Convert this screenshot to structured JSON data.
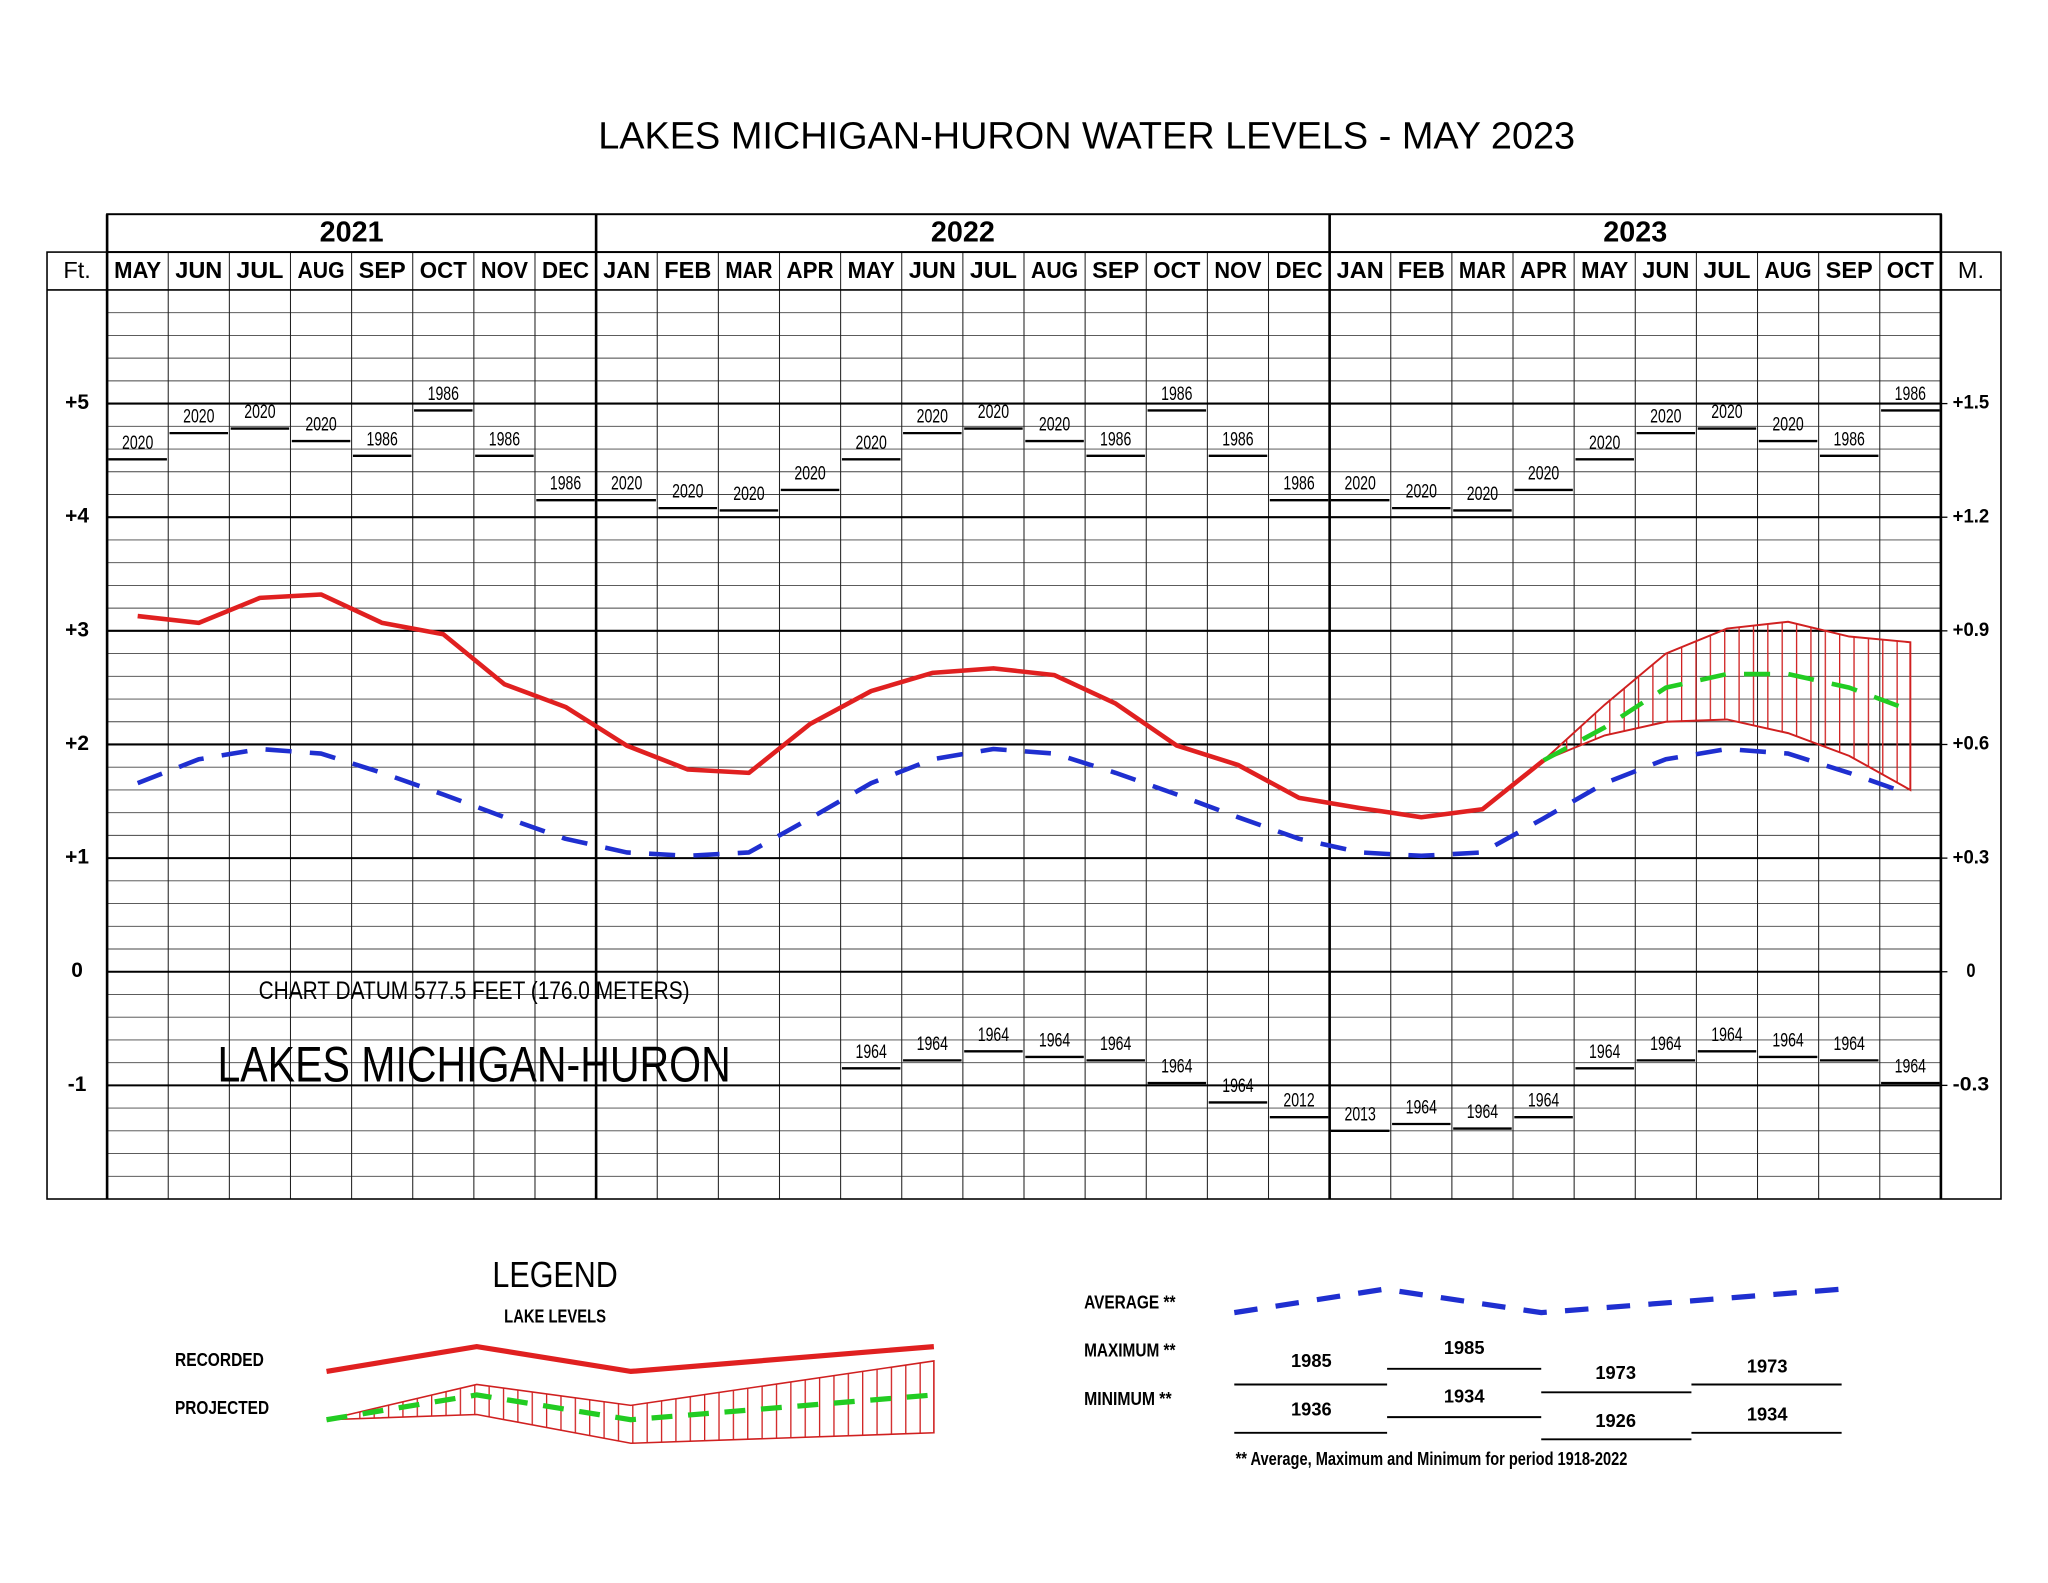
{
  "chart_data": {
    "type": "line",
    "title": "LAKES MICHIGAN-HURON WATER LEVELS - MAY 2023",
    "y_label": "Ft.",
    "y2_label": "M.",
    "datum_note": "CHART DATUM  577.5 FEET (176.0 METERS)",
    "lake_label": "LAKES MICHIGAN-HURON",
    "years": [
      {
        "year": "2021",
        "months": [
          "MAY",
          "JUN",
          "JUL",
          "AUG",
          "SEP",
          "OCT",
          "NOV",
          "DEC"
        ]
      },
      {
        "year": "2022",
        "months": [
          "JAN",
          "FEB",
          "MAR",
          "APR",
          "MAY",
          "JUN",
          "JUL",
          "AUG",
          "SEP",
          "OCT",
          "NOV",
          "DEC"
        ]
      },
      {
        "year": "2023",
        "months": [
          "JAN",
          "FEB",
          "MAR",
          "APR",
          "MAY",
          "JUN",
          "JUL",
          "AUG",
          "SEP",
          "OCT"
        ]
      }
    ],
    "ylim": [
      -2,
      6
    ],
    "yticks": [
      {
        "value": 5,
        "label": "+5"
      },
      {
        "value": 4,
        "label": "+4"
      },
      {
        "value": 3,
        "label": "+3"
      },
      {
        "value": 2,
        "label": "+2"
      },
      {
        "value": 1,
        "label": "+1"
      },
      0,
      -1
    ],
    "y2lim": [
      -0.6,
      1.8
    ],
    "y2ticks": [
      {
        "value": 1.5,
        "label": "+1.5"
      },
      {
        "value": 1.2,
        "label": "+1.2"
      },
      {
        "value": 0.9,
        "label": "+0.9"
      },
      {
        "value": 0.6,
        "label": "+0.6"
      },
      {
        "value": 0.3,
        "label": "+0.3"
      },
      0,
      -0.3
    ],
    "y_minor_step": 0.2,
    "grid": true,
    "series": [
      {
        "name": "RECORDED",
        "color": "#e02020",
        "dash": false,
        "values": [
          3.13,
          3.07,
          3.29,
          3.32,
          3.07,
          2.97,
          2.53,
          2.33,
          1.99,
          1.78,
          1.75,
          2.18,
          2.47,
          2.63,
          2.67,
          2.61,
          2.36,
          1.99,
          1.82,
          1.53,
          1.44,
          1.36,
          1.43,
          1.86,
          null,
          null,
          null,
          null,
          null,
          null
        ]
      },
      {
        "name": "AVERAGE **",
        "color": "#1f2fd0",
        "dash": true,
        "values": [
          1.66,
          1.87,
          1.96,
          1.92,
          1.75,
          1.56,
          1.36,
          1.17,
          1.05,
          1.02,
          1.05,
          1.35,
          1.66,
          1.87,
          1.96,
          1.92,
          1.75,
          1.56,
          1.36,
          1.17,
          1.05,
          1.02,
          1.05,
          1.35,
          1.66,
          1.87,
          1.96,
          1.92,
          1.75,
          1.56
        ]
      },
      {
        "name": "PROJECTED",
        "color": "#22cc22",
        "dash": true,
        "values": [
          null,
          null,
          null,
          null,
          null,
          null,
          null,
          null,
          null,
          null,
          null,
          null,
          null,
          null,
          null,
          null,
          null,
          null,
          null,
          null,
          null,
          null,
          null,
          1.86,
          2.15,
          2.5,
          2.62,
          2.62,
          2.5,
          2.3
        ]
      }
    ],
    "band": {
      "color": "#d02020",
      "upper": [
        null,
        null,
        null,
        null,
        null,
        null,
        null,
        null,
        null,
        null,
        null,
        null,
        null,
        null,
        null,
        null,
        null,
        null,
        null,
        null,
        null,
        null,
        null,
        1.86,
        2.35,
        2.8,
        3.02,
        3.08,
        2.95,
        2.9
      ],
      "lower": [
        null,
        null,
        null,
        null,
        null,
        null,
        null,
        null,
        null,
        null,
        null,
        null,
        null,
        null,
        null,
        null,
        null,
        null,
        null,
        null,
        null,
        null,
        null,
        1.86,
        2.08,
        2.2,
        2.22,
        2.1,
        1.9,
        1.6
      ]
    },
    "maximum": {
      "values": [
        4.51,
        4.74,
        4.78,
        4.67,
        4.54,
        4.94,
        4.54,
        4.15,
        4.15,
        4.08,
        4.06,
        4.24,
        4.51,
        4.74,
        4.78,
        4.67,
        4.54,
        4.94,
        4.54,
        4.15,
        4.15,
        4.08,
        4.06,
        4.24,
        4.51,
        4.74,
        4.78,
        4.67,
        4.54,
        4.94
      ],
      "labels": [
        "2020",
        "2020",
        "2020",
        "2020",
        "1986",
        "1986",
        "1986",
        "1986",
        "2020",
        "2020",
        "2020",
        "2020",
        "2020",
        "2020",
        "2020",
        "2020",
        "1986",
        "1986",
        "1986",
        "1986",
        "2020",
        "2020",
        "2020",
        "2020",
        "2020",
        "2020",
        "2020",
        "2020",
        "1986",
        "1986"
      ]
    },
    "minimum": {
      "values": [
        null,
        null,
        null,
        null,
        null,
        null,
        null,
        null,
        null,
        null,
        null,
        null,
        -0.85,
        -0.78,
        -0.7,
        -0.75,
        -0.78,
        -0.98,
        -1.15,
        -1.28,
        -1.4,
        -1.34,
        -1.38,
        -1.28,
        -0.85,
        -0.78,
        -0.7,
        -0.75,
        -0.78,
        -0.98
      ],
      "labels": [
        null,
        null,
        null,
        null,
        null,
        null,
        null,
        null,
        null,
        null,
        null,
        null,
        "1964",
        "1964",
        "1964",
        "1964",
        "1964",
        "1964",
        "1964",
        "2012",
        "2013",
        "1964",
        "1964",
        "1964",
        "1964",
        "1964",
        "1964",
        "1964",
        "1964",
        "1964"
      ]
    },
    "legend_box": {
      "title": "LEGEND",
      "subtitle": "LAKE LEVELS",
      "maximum": "MAXIMUM **",
      "minimum": "MINIMUM **",
      "max_years": [
        "1985",
        "1985",
        "1973",
        "1973"
      ],
      "min_years": [
        "1936",
        "1934",
        "1926",
        "1934"
      ],
      "footnote": "** Average, Maximum and Minimum for period 1918-2022"
    }
  }
}
